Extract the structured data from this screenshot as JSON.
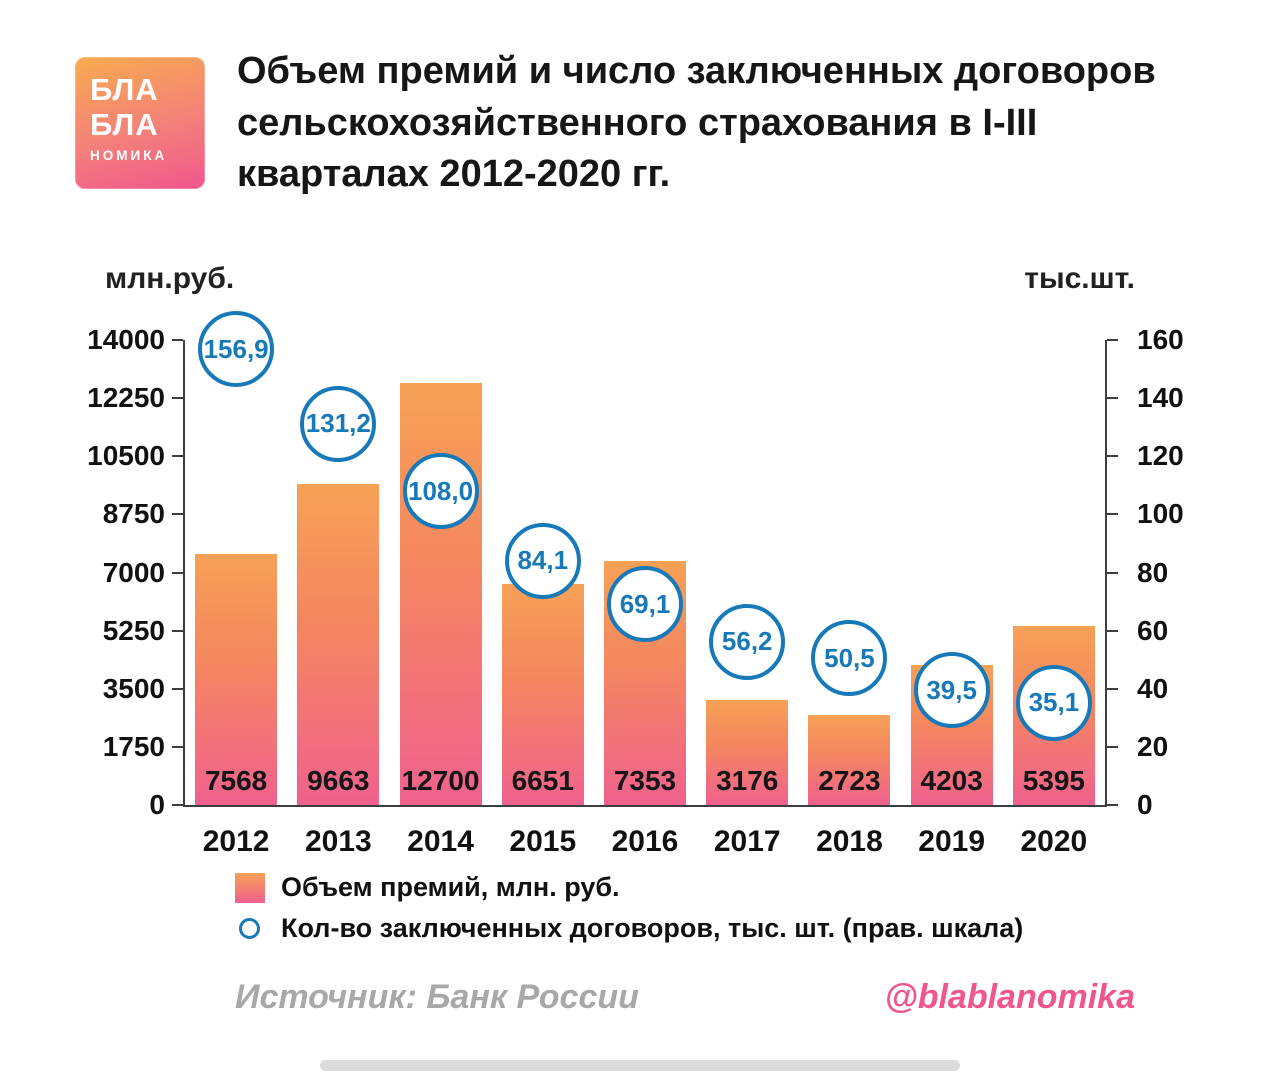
{
  "logo": {
    "line1": "БЛА",
    "line2": "БЛА",
    "line3": "НОМИКА"
  },
  "title": "Объем премий и число заключенных договоров сельскохозяйственного страхования в I-III кварталах 2012-2020 гг.",
  "chart_data": {
    "type": "bar",
    "categories": [
      "2012",
      "2013",
      "2014",
      "2015",
      "2016",
      "2017",
      "2018",
      "2019",
      "2020"
    ],
    "series": [
      {
        "name": "Объем премий, млн. руб.",
        "axis": "left",
        "values": [
          7568,
          9663,
          12700,
          6651,
          7353,
          3176,
          2723,
          4203,
          5395
        ],
        "labels": [
          "7568",
          "9663",
          "12700",
          "6651",
          "7353",
          "3176",
          "2723",
          "4203",
          "5395"
        ]
      },
      {
        "name": "Кол-во заключенных договоров, тыс. шт. (прав. шкала)",
        "axis": "right",
        "values": [
          156.9,
          131.2,
          108.0,
          84.1,
          69.1,
          56.2,
          50.5,
          39.5,
          35.1
        ],
        "labels": [
          "156,9",
          "131,2",
          "108,0",
          "84,1",
          "69,1",
          "56,2",
          "50,5",
          "39,5",
          "35,1"
        ]
      }
    ],
    "left_axis": {
      "label": "млн.руб.",
      "min": 0,
      "max": 14000,
      "step": 1750,
      "ticks": [
        "0",
        "1750",
        "3500",
        "5250",
        "7000",
        "8750",
        "10500",
        "12250",
        "14000"
      ]
    },
    "right_axis": {
      "label": "тыс.шт.",
      "min": 0,
      "max": 160,
      "step": 20,
      "ticks": [
        "0",
        "20",
        "40",
        "60",
        "80",
        "100",
        "120",
        "140",
        "160"
      ]
    },
    "grid": false,
    "legend_position": "bottom-left"
  },
  "footer": {
    "source": "Источник: Банк России",
    "handle": "@blablanomika"
  },
  "colors": {
    "bar_top": "#f6a156",
    "bar_bottom": "#f0618e",
    "circle_stroke": "#1879b8",
    "title": "#161616",
    "source_gray": "#a8a8a8",
    "handle_pink": "#f0568d"
  }
}
